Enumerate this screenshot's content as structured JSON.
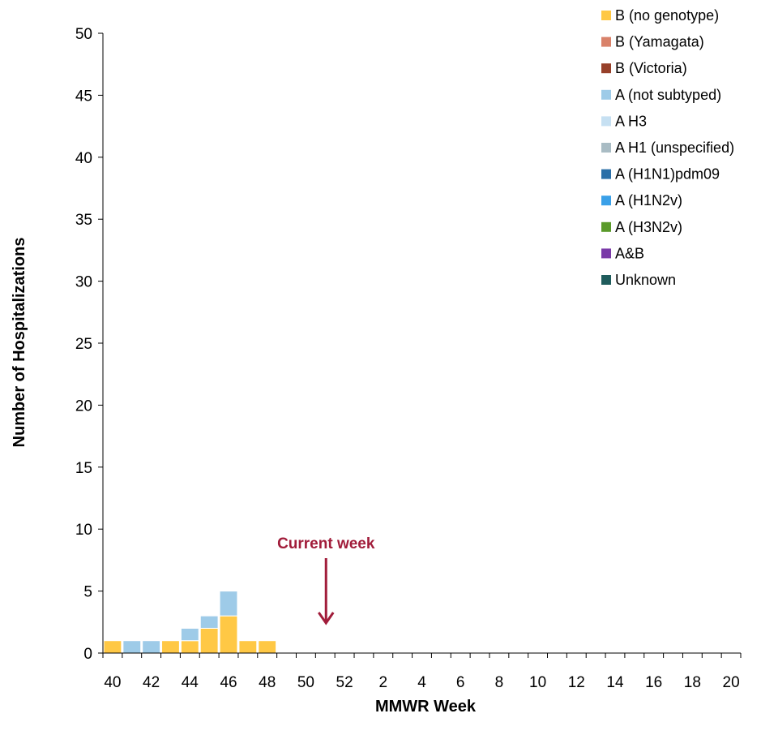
{
  "chart_data": {
    "type": "bar",
    "stacked": true,
    "xlabel": "MMWR Week",
    "ylabel": "Number of Hospitalizations",
    "ylim": [
      0,
      50
    ],
    "yticks": [
      0,
      5,
      10,
      15,
      20,
      25,
      30,
      35,
      40,
      45,
      50
    ],
    "categories": [
      40,
      41,
      42,
      43,
      44,
      45,
      46,
      47,
      48,
      49,
      50,
      51,
      52,
      1,
      2,
      3,
      4,
      5,
      6,
      7,
      8,
      9,
      10,
      11,
      12,
      13,
      14,
      15,
      16,
      17,
      18,
      19,
      20
    ],
    "xtick_labels": [
      "40",
      "42",
      "44",
      "46",
      "48",
      "50",
      "52",
      "2",
      "4",
      "6",
      "8",
      "10",
      "12",
      "14",
      "16",
      "18",
      "20"
    ],
    "series": [
      {
        "name": "B (no genotype)",
        "color": "#FFC845",
        "values": [
          1,
          0,
          0,
          1,
          1,
          2,
          3,
          1,
          1,
          0,
          0,
          0,
          0,
          0,
          0,
          0,
          0,
          0,
          0,
          0,
          0,
          0,
          0,
          0,
          0,
          0,
          0,
          0,
          0,
          0,
          0,
          0,
          0
        ]
      },
      {
        "name": "B (Yamagata)",
        "color": "#D9826A",
        "values": [
          0,
          0,
          0,
          0,
          0,
          0,
          0,
          0,
          0,
          0,
          0,
          0,
          0,
          0,
          0,
          0,
          0,
          0,
          0,
          0,
          0,
          0,
          0,
          0,
          0,
          0,
          0,
          0,
          0,
          0,
          0,
          0,
          0
        ]
      },
      {
        "name": "B (Victoria)",
        "color": "#97402A",
        "values": [
          0,
          0,
          0,
          0,
          0,
          0,
          0,
          0,
          0,
          0,
          0,
          0,
          0,
          0,
          0,
          0,
          0,
          0,
          0,
          0,
          0,
          0,
          0,
          0,
          0,
          0,
          0,
          0,
          0,
          0,
          0,
          0,
          0
        ]
      },
      {
        "name": "A (not subtyped)",
        "color": "#9ECBE8",
        "values": [
          0,
          1,
          1,
          0,
          1,
          1,
          2,
          0,
          0,
          0,
          0,
          0,
          0,
          0,
          0,
          0,
          0,
          0,
          0,
          0,
          0,
          0,
          0,
          0,
          0,
          0,
          0,
          0,
          0,
          0,
          0,
          0,
          0
        ]
      },
      {
        "name": "A H3",
        "color": "#C6E0F2",
        "values": [
          0,
          0,
          0,
          0,
          0,
          0,
          0,
          0,
          0,
          0,
          0,
          0,
          0,
          0,
          0,
          0,
          0,
          0,
          0,
          0,
          0,
          0,
          0,
          0,
          0,
          0,
          0,
          0,
          0,
          0,
          0,
          0,
          0
        ]
      },
      {
        "name": "A H1 (unspecified)",
        "color": "#A9BCC4",
        "values": [
          0,
          0,
          0,
          0,
          0,
          0,
          0,
          0,
          0,
          0,
          0,
          0,
          0,
          0,
          0,
          0,
          0,
          0,
          0,
          0,
          0,
          0,
          0,
          0,
          0,
          0,
          0,
          0,
          0,
          0,
          0,
          0,
          0
        ]
      },
      {
        "name": "A (H1N1)pdm09",
        "color": "#2A6FA8",
        "values": [
          0,
          0,
          0,
          0,
          0,
          0,
          0,
          0,
          0,
          0,
          0,
          0,
          0,
          0,
          0,
          0,
          0,
          0,
          0,
          0,
          0,
          0,
          0,
          0,
          0,
          0,
          0,
          0,
          0,
          0,
          0,
          0,
          0
        ]
      },
      {
        "name": "A (H1N2v)",
        "color": "#3AA0E8",
        "values": [
          0,
          0,
          0,
          0,
          0,
          0,
          0,
          0,
          0,
          0,
          0,
          0,
          0,
          0,
          0,
          0,
          0,
          0,
          0,
          0,
          0,
          0,
          0,
          0,
          0,
          0,
          0,
          0,
          0,
          0,
          0,
          0,
          0
        ]
      },
      {
        "name": "A (H3N2v)",
        "color": "#5A9A2A",
        "values": [
          0,
          0,
          0,
          0,
          0,
          0,
          0,
          0,
          0,
          0,
          0,
          0,
          0,
          0,
          0,
          0,
          0,
          0,
          0,
          0,
          0,
          0,
          0,
          0,
          0,
          0,
          0,
          0,
          0,
          0,
          0,
          0,
          0
        ]
      },
      {
        "name": "A&B",
        "color": "#7A3AA8",
        "values": [
          0,
          0,
          0,
          0,
          0,
          0,
          0,
          0,
          0,
          0,
          0,
          0,
          0,
          0,
          0,
          0,
          0,
          0,
          0,
          0,
          0,
          0,
          0,
          0,
          0,
          0,
          0,
          0,
          0,
          0,
          0,
          0,
          0
        ]
      },
      {
        "name": "Unknown",
        "color": "#1F5C5C",
        "values": [
          0,
          0,
          0,
          0,
          0,
          0,
          0,
          0,
          0,
          0,
          0,
          0,
          0,
          0,
          0,
          0,
          0,
          0,
          0,
          0,
          0,
          0,
          0,
          0,
          0,
          0,
          0,
          0,
          0,
          0,
          0,
          0,
          0
        ]
      }
    ],
    "annotation": {
      "text": "Current week",
      "week": 51,
      "color": "#A11C3A"
    },
    "legend_position": "top-right",
    "grid": false
  }
}
